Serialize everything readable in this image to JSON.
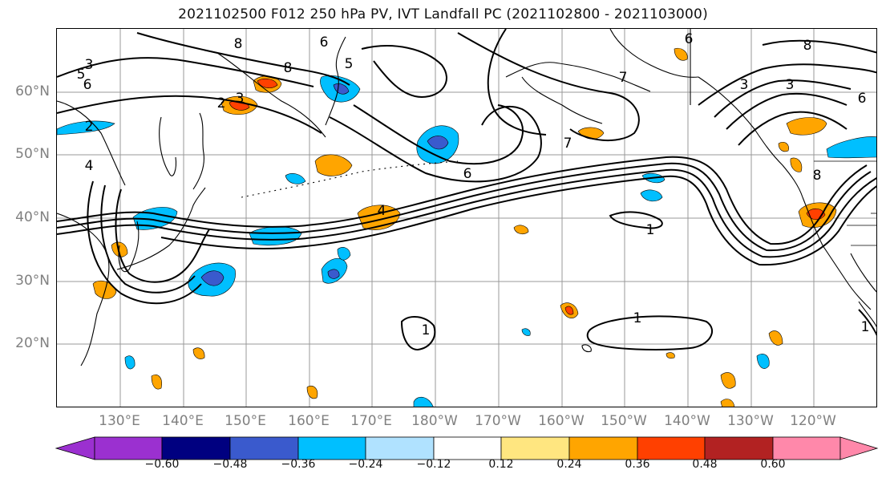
{
  "title": "2021102500 F012 250 hPa PV, IVT Landfall PC (2021102800 - 2021103000)",
  "lat_labels": [
    "60°N",
    "50°N",
    "40°N",
    "30°N",
    "20°N"
  ],
  "lon_labels": [
    "130°E",
    "140°E",
    "150°E",
    "160°E",
    "170°E",
    "180°W",
    "170°W",
    "160°W",
    "150°W",
    "140°W",
    "130°W",
    "120°W"
  ],
  "contour_labels": [
    "3",
    "5",
    "6",
    "8",
    "6",
    "5",
    "6",
    "7",
    "8",
    "2",
    "3",
    "2",
    "4",
    "4",
    "1",
    "1",
    "1",
    "7",
    "6",
    "8",
    "3",
    "3",
    "6",
    "8",
    "1"
  ],
  "colorbar": {
    "ticks": [
      "−0.60",
      "−0.48",
      "−0.36",
      "−0.24",
      "−0.12",
      "0.12",
      "0.24",
      "0.36",
      "0.48",
      "0.60"
    ],
    "colors": [
      "#9b30d0",
      "#000080",
      "#3a5acd",
      "#00bfff",
      "#b0e2ff",
      "#ffffff",
      "#ffe680",
      "#ffa500",
      "#ff4000",
      "#b22222",
      "#ff88aa"
    ]
  }
}
